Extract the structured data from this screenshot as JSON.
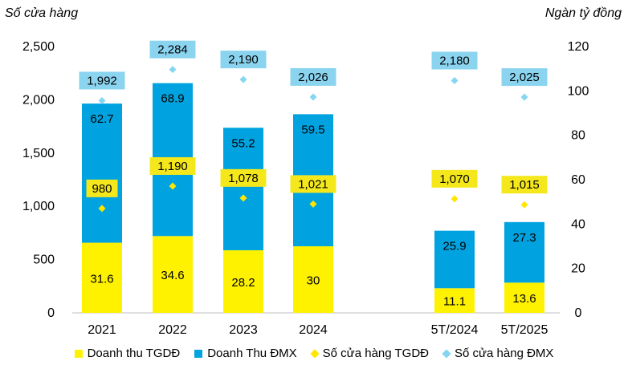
{
  "chart_data": {
    "type": "bar",
    "subtype": "stacked-bar-with-markers",
    "categories": [
      "2021",
      "2022",
      "2023",
      "2024",
      "5T/2024",
      "5T/2025"
    ],
    "left_axis": {
      "title": "Số cửa hàng",
      "range": [
        0,
        2500
      ],
      "ticks": [
        "0",
        "500",
        "1,000",
        "1,500",
        "2,000",
        "2,500"
      ]
    },
    "right_axis": {
      "title": "Ngàn tỷ đồng",
      "range": [
        0,
        120
      ],
      "ticks": [
        "0",
        "20",
        "40",
        "60",
        "80",
        "100",
        "120"
      ]
    },
    "grid": false,
    "legend_position": "bottom",
    "series": [
      {
        "name": "Doanh thu TGDĐ",
        "kind": "bar",
        "axis": "right",
        "color": "#FFF200",
        "values": [
          31.6,
          34.6,
          28.2,
          30,
          11.1,
          13.6
        ],
        "labels": [
          "31.6",
          "34.6",
          "28.2",
          "30",
          "11.1",
          "13.6"
        ]
      },
      {
        "name": "Doanh Thu ĐMX",
        "kind": "bar",
        "axis": "right",
        "color": "#00A3E0",
        "values": [
          62.7,
          68.9,
          55.2,
          59.5,
          25.9,
          27.3
        ],
        "labels": [
          "62.7",
          "68.9",
          "55.2",
          "59.5",
          "25.9",
          "27.3"
        ]
      },
      {
        "name": "Số cửa hàng TGDĐ",
        "kind": "marker",
        "axis": "left",
        "color": "#FFE600",
        "label_bg": "#F4E81C",
        "values": [
          980,
          1190,
          1078,
          1021,
          1070,
          1015
        ],
        "labels": [
          "980",
          "1,190",
          "1,078",
          "1,021",
          "1,070",
          "1,015"
        ]
      },
      {
        "name": "Số cửa hàng ĐMX",
        "kind": "marker",
        "axis": "left",
        "color": "#86D6F2",
        "label_bg": "#8BD4F0",
        "values": [
          1992,
          2284,
          2190,
          2026,
          2180,
          2025
        ],
        "labels": [
          "1,992",
          "2,284",
          "2,190",
          "2,026",
          "2,180",
          "2,025"
        ]
      }
    ]
  }
}
